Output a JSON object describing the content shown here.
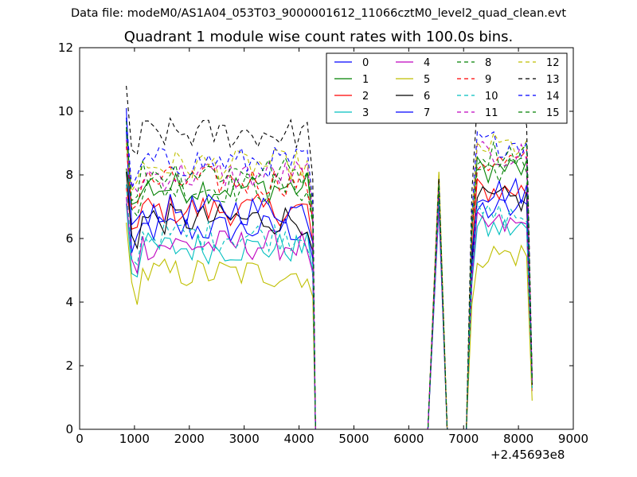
{
  "header": {
    "data_file": "Data file: modeM0/AS1A04_053T03_9000001612_11066cztM0_level2_quad_clean.evt"
  },
  "chart_data": {
    "type": "line",
    "title": "Quadrant 1 module wise count rates with 100.0s bins.",
    "xlabel": "",
    "ylabel": "",
    "x_offset_label": "+2.45693e8",
    "xlim": [
      0,
      9000
    ],
    "ylim": [
      0,
      12
    ],
    "xticks": [
      0,
      1000,
      2000,
      3000,
      4000,
      5000,
      6000,
      7000,
      8000,
      9000
    ],
    "yticks": [
      0,
      2,
      4,
      6,
      8,
      10,
      12
    ],
    "grid": false,
    "legend": {
      "placement": "top-right",
      "columns": 4
    },
    "segments": [
      {
        "kind": "active",
        "x_start": 850,
        "x_end": 4250,
        "step": 100
      },
      {
        "kind": "gap",
        "x": [
          4300,
          4350,
          4450,
          6350
        ]
      },
      {
        "kind": "active",
        "x_start": 6550,
        "x_end": 6550,
        "step": 100
      },
      {
        "kind": "gap",
        "x": [
          6700,
          6750,
          7050
        ]
      },
      {
        "kind": "active",
        "x_start": 7150,
        "x_end": 8250,
        "step": 100
      }
    ],
    "series": [
      {
        "name": "0",
        "color": "#0000ff",
        "dash": "solid",
        "base": 6.3,
        "start": 9.4,
        "peak": 7.2,
        "end": 1.5
      },
      {
        "name": "1",
        "color": "#008000",
        "dash": "solid",
        "base": 7.6,
        "start": 8.2,
        "peak": 7.6,
        "end": 1.5
      },
      {
        "name": "2",
        "color": "#ff0000",
        "dash": "solid",
        "base": 6.9,
        "start": 7.6,
        "peak": 7.3,
        "end": 1.4
      },
      {
        "name": "3",
        "color": "#00bfbf",
        "dash": "solid",
        "base": 5.7,
        "start": 7.1,
        "peak": 6.9,
        "end": 1.3
      },
      {
        "name": "4",
        "color": "#bf00bf",
        "dash": "solid",
        "base": 5.8,
        "start": 7.3,
        "peak": 7.0,
        "end": 1.2
      },
      {
        "name": "5",
        "color": "#bfbf00",
        "dash": "solid",
        "base": 4.9,
        "start": 6.5,
        "peak": 8.1,
        "end": 0.9
      },
      {
        "name": "6",
        "color": "#000000",
        "dash": "solid",
        "base": 6.6,
        "start": 8.1,
        "peak": 7.5,
        "end": 1.4
      },
      {
        "name": "7",
        "color": "#0000ff",
        "dash": "solid",
        "base": 6.9,
        "start": 10.1,
        "peak": 7.5,
        "end": 1.5
      },
      {
        "name": "8",
        "color": "#008000",
        "dash": "dashed",
        "base": 7.6,
        "start": 9.7,
        "peak": 7.8,
        "end": 1.5
      },
      {
        "name": "9",
        "color": "#ff0000",
        "dash": "dashed",
        "base": 7.8,
        "start": 8.9,
        "peak": 7.6,
        "end": 1.5
      },
      {
        "name": "10",
        "color": "#00bfbf",
        "dash": "dashed",
        "base": 6.1,
        "start": 7.7,
        "peak": 7.2,
        "end": 1.3
      },
      {
        "name": "11",
        "color": "#bf00bf",
        "dash": "dashed",
        "base": 8.0,
        "start": 9.1,
        "peak": 7.7,
        "end": 1.5
      },
      {
        "name": "12",
        "color": "#bfbf00",
        "dash": "dashed",
        "base": 8.3,
        "start": 9.0,
        "peak": 8.1,
        "end": 1.6
      },
      {
        "name": "13",
        "color": "#000000",
        "dash": "dashed",
        "base": 9.3,
        "start": 10.8,
        "peak": 7.9,
        "end": 1.7
      },
      {
        "name": "14",
        "color": "#0000ff",
        "dash": "dashed",
        "base": 8.4,
        "start": 9.8,
        "peak": 7.7,
        "end": 1.6
      },
      {
        "name": "15",
        "color": "#008000",
        "dash": "dashed",
        "base": 8.1,
        "start": 9.5,
        "peak": 7.7,
        "end": 1.5
      }
    ]
  }
}
